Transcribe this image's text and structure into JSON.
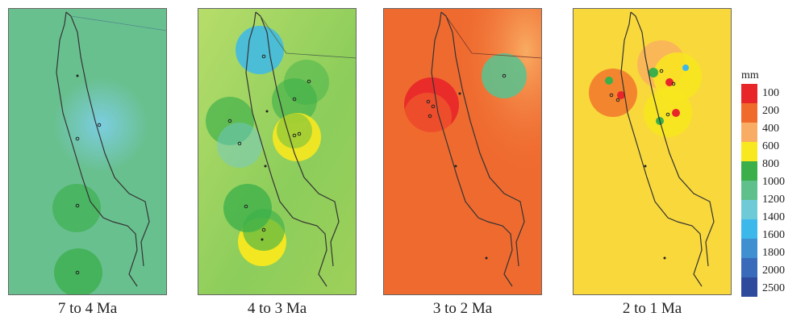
{
  "panels": [
    {
      "caption": "7 to 4 Ma",
      "background": "#69c08f"
    },
    {
      "caption": "4 to 3 Ma",
      "background": "#8ccd5b"
    },
    {
      "caption": "3 to 2 Ma",
      "background": "#ef6a2f"
    },
    {
      "caption": "2 to 1 Ma",
      "background": "#f9d83b"
    }
  ],
  "legend": {
    "unit": "mm",
    "classes": [
      {
        "label": "100",
        "color": "#e8262a"
      },
      {
        "label": "200",
        "color": "#f06a2c"
      },
      {
        "label": "400",
        "color": "#f9ac63"
      },
      {
        "label": "600",
        "color": "#f8e81f"
      },
      {
        "label": "800",
        "color": "#3aaf4a"
      },
      {
        "label": "1000",
        "color": "#5fc08c"
      },
      {
        "label": "1200",
        "color": "#6fcad8"
      },
      {
        "label": "1400",
        "color": "#3cb8ea"
      },
      {
        "label": "1600",
        "color": "#3f8fd1"
      },
      {
        "label": "1800",
        "color": "#3a6bba"
      },
      {
        "label": "2000",
        "color": "#2e4a9c"
      },
      {
        "label": "2500",
        "color": null
      }
    ]
  }
}
